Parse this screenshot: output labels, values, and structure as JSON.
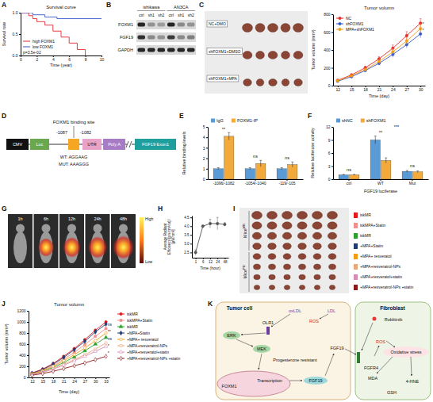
{
  "panel_letters": [
    "A",
    "B",
    "C",
    "D",
    "E",
    "F",
    "G",
    "H",
    "I",
    "J",
    "K"
  ],
  "chart_data": [
    {
      "type": "line",
      "title": "Survival curve",
      "x_label": "Time (year)",
      "y_label": "Survival rate",
      "xlim": [
        0,
        10
      ],
      "xticks": [
        0,
        2,
        4,
        6,
        8,
        10
      ],
      "ylim": [
        0,
        1
      ],
      "yticks": [
        {
          "value": 0,
          "label": "0.0"
        },
        0.5,
        {
          "value": 1,
          "label": "1.0"
        }
      ],
      "line_style": "step",
      "legend": "bottom-left",
      "annotations": [
        {
          "text": "p=3.5e-02"
        }
      ],
      "series": [
        {
          "name": "high FOXM1",
          "color": "#e8262a",
          "x": [
            0,
            1,
            1.5,
            2,
            3,
            4,
            5,
            6,
            7,
            8
          ],
          "values": [
            1,
            0.93,
            0.86,
            0.79,
            0.71,
            0.57,
            0.43,
            0.29,
            0.14,
            0
          ]
        },
        {
          "name": "low FOXM1",
          "color": "#3355cc",
          "x": [
            0,
            1.5,
            3,
            4.5,
            10
          ],
          "values": [
            1,
            0.95,
            0.9,
            0.86,
            0.86
          ]
        }
      ]
    },
    {
      "type": "line",
      "title": "Tumor volumn",
      "x_label": "Time (day)",
      "y_label": "Tumor volumn (mm³)",
      "xlim": [
        11,
        31
      ],
      "xticks": [
        12,
        15,
        18,
        21,
        24,
        27,
        30
      ],
      "ylim": [
        0,
        800
      ],
      "yticks": [
        0,
        200,
        400,
        600,
        800
      ],
      "legend": "top-left",
      "marker": "circle",
      "x": [
        12,
        15,
        18,
        21,
        24,
        27,
        30
      ],
      "series": [
        {
          "name": "NC",
          "color": "#e8262a",
          "values": [
            60,
            120,
            200,
            300,
            420,
            560,
            700
          ],
          "errors": [
            8,
            12,
            18,
            25,
            35,
            45,
            50
          ]
        },
        {
          "name": "shFOXM1",
          "color": "#3355cc",
          "values": [
            50,
            100,
            170,
            250,
            350,
            460,
            580
          ],
          "errors": [
            6,
            10,
            15,
            22,
            30,
            38,
            45
          ]
        },
        {
          "name": "MPA+shFOXM1",
          "color": "#f39c12",
          "values": [
            55,
            110,
            180,
            270,
            380,
            500,
            640
          ],
          "errors": [
            7,
            11,
            16,
            24,
            32,
            40,
            48
          ]
        }
      ],
      "annotations": [
        {
          "text": "*",
          "x": 30.4,
          "y": 620
        },
        {
          "text": "*",
          "x": 30.4,
          "y": 690
        }
      ]
    },
    {
      "type": "bar",
      "y_label": "Relative binding levels",
      "categories": [
        "-1096/-1082",
        "-1054/-1040",
        "-119/-105"
      ],
      "ylim": [
        0,
        5
      ],
      "yticks": [
        0,
        1,
        2,
        3,
        4,
        5
      ],
      "legend": "top",
      "series": [
        {
          "name": "IgG",
          "color": "#5b9bd5",
          "values": [
            1,
            1,
            1
          ],
          "errors": [
            0.1,
            0.1,
            0.1
          ]
        },
        {
          "name": "FOXM1-IP",
          "color": "#f4a93b",
          "values": [
            4.1,
            1.5,
            1.4
          ],
          "errors": [
            0.35,
            0.3,
            0.25
          ]
        }
      ],
      "annotations": [
        {
          "text": "**",
          "x": 0,
          "y": 4.65
        },
        {
          "text": "ns",
          "x": 1,
          "y": 2.05
        },
        {
          "text": "ns",
          "x": 2,
          "y": 1.9
        }
      ]
    },
    {
      "type": "bar",
      "x_label": "FGF19 luciferase",
      "y_label": "Relative luciferase activity",
      "categories": [
        "ctrl",
        "WT",
        "Mut"
      ],
      "ylim": [
        0,
        12
      ],
      "yticks": [
        0,
        3,
        6,
        9,
        12
      ],
      "legend": "top",
      "series": [
        {
          "name": "shNC",
          "color": "#5b9bd5",
          "values": [
            1,
            9,
            1.8
          ],
          "errors": [
            0.1,
            0.9,
            0.2
          ]
        },
        {
          "name": "shFOXM1",
          "color": "#f4a93b",
          "values": [
            1,
            4.3,
            1.7
          ],
          "errors": [
            0.1,
            0.6,
            0.2
          ]
        }
      ],
      "annotations": [
        {
          "text": "ns",
          "x": 0,
          "y": 1.8
        },
        {
          "text": "**",
          "x": 1,
          "y": 10.4
        },
        {
          "text": "***",
          "x": 1.5,
          "y": 11.7
        },
        {
          "text": "ns",
          "x": 2,
          "y": 2.7
        }
      ]
    },
    {
      "type": "line",
      "x_label": "Time (hour)",
      "y_label": "Average Radiant Efficiency [p/s/cm²/sr] / [µW/cm²]",
      "categories": [
        "1",
        "6",
        "12",
        "24",
        "48"
      ],
      "ylim": [
        2.2,
        4.6
      ],
      "yticks": [
        2.5,
        {
          "value": 3,
          "label": "3.0"
        },
        3.5,
        {
          "value": 4,
          "label": "4.0"
        },
        4.5
      ],
      "marker": "circle",
      "series": [
        {
          "color": "#555555",
          "values": [
            2.5,
            4.0,
            4.15,
            4.15,
            4.1
          ],
          "errors": [
            0.15,
            0.05,
            0.25,
            0.35,
            0.1
          ]
        }
      ]
    },
    {
      "type": "line",
      "title": "Tumor volumn",
      "x_label": "Time (day)",
      "y_label": "Tumor volumn (mm³)",
      "xlim": [
        11,
        34
      ],
      "xticks": [
        12,
        15,
        18,
        21,
        24,
        27,
        30,
        33
      ],
      "ylim": [
        0,
        1200
      ],
      "yticks": [
        0,
        200,
        400,
        600,
        800,
        1000,
        1200
      ],
      "legend": "right",
      "x": [
        12,
        15,
        18,
        21,
        24,
        27,
        30,
        33
      ],
      "series": [
        {
          "name": "iskMR",
          "color": "#e41a1c",
          "marker": "circle",
          "values": [
            80,
            150,
            250,
            380,
            520,
            680,
            850,
            1000
          ]
        },
        {
          "name": "iskMPA+Statin",
          "color": "#f28e8e",
          "marker": "square",
          "values": [
            70,
            130,
            220,
            330,
            450,
            590,
            740,
            880
          ]
        },
        {
          "name": "iskMR",
          "color": "#2ca02c",
          "marker": "triangle",
          "values": [
            60,
            110,
            180,
            270,
            370,
            480,
            600,
            720
          ]
        },
        {
          "name": "+MPA+Statin",
          "color": "#1f3b73",
          "marker": "diamond",
          "values": [
            75,
            140,
            240,
            360,
            500,
            650,
            820,
            960
          ]
        },
        {
          "name": "+MPA+ resveratol",
          "color": "#f39c12",
          "marker": "circle-open",
          "values": [
            65,
            120,
            200,
            300,
            410,
            530,
            660,
            800
          ]
        },
        {
          "name": "+MPA+resveratrol-NPs",
          "color": "#e8a87c",
          "marker": "square-open",
          "values": [
            55,
            100,
            160,
            240,
            320,
            410,
            510,
            620
          ]
        },
        {
          "name": "+MPA+resveratol+statin",
          "color": "#d98cb3",
          "marker": "triangle-open",
          "values": [
            50,
            90,
            150,
            220,
            300,
            380,
            470,
            560
          ]
        },
        {
          "name": "+MPA+resveratrol-NPs +statin",
          "color": "#8b1a1a",
          "marker": "diamond-open",
          "values": [
            40,
            70,
            110,
            160,
            210,
            260,
            320,
            380
          ]
        }
      ],
      "annotations": [
        {
          "text": "ns",
          "x": 33.5,
          "y": 960
        },
        {
          "text": "**",
          "x": 33.5,
          "y": 830
        },
        {
          "text": "ns",
          "x": 33.5,
          "y": 700
        },
        {
          "text": "*",
          "x": 33.5,
          "y": 570
        },
        {
          "text": "*",
          "x": 33.5,
          "y": 440
        }
      ]
    }
  ],
  "blot": {
    "groups": [
      {
        "name": "ishikawa",
        "lanes": [
          "ctrl",
          "sh1",
          "sh2"
        ]
      },
      {
        "name": "AN3CA",
        "lanes": [
          "ctrl",
          "sh1",
          "sh2"
        ]
      }
    ],
    "rows": [
      {
        "name": "FOXM1",
        "intensity": [
          0.9,
          0.35,
          0.3,
          0.9,
          0.4,
          0.35
        ]
      },
      {
        "name": "FGF19",
        "intensity": [
          0.85,
          0.4,
          0.35,
          0.8,
          0.4,
          0.45
        ]
      },
      {
        "name": "GAPDH",
        "intensity": [
          0.9,
          0.9,
          0.9,
          0.9,
          0.9,
          0.9
        ]
      }
    ]
  },
  "tumor_photos_c": {
    "rows": [
      "NC+DMO",
      "shFOXM1+DMSO",
      "shFOXM1+MPA"
    ]
  },
  "construct": {
    "binding_site": "FOXM1 binding site",
    "positions": [
      "-1087",
      "-1082"
    ],
    "elements": [
      "CMV",
      "Luc",
      "UTR",
      "Poly A"
    ],
    "exon": "FGF19 Exon1",
    "wt": "WT: AGGAAG",
    "mut": "MUT: AAAGGG"
  },
  "imaging": {
    "times": [
      "1h",
      "6h",
      "12h",
      "24h",
      "48h"
    ],
    "scale_high": "High",
    "scale_low": "Low"
  },
  "tumor_photos_i": {
    "groups": [
      {
        "base": "Mice",
        "sup": "MR"
      },
      {
        "base": "Mice",
        "sup": "PD"
      }
    ]
  },
  "pathway": {
    "cells": [
      "Tumor cell",
      "Fibroblast"
    ],
    "labels": [
      "oxLDL",
      "LDL",
      "ROS",
      "OLR1",
      "ERK",
      "MEK",
      "Progesterone resistant",
      "FOXM1",
      "Transcription",
      "FGF19",
      "FGF19",
      "FGFR4",
      "Roblitinib",
      "ROS",
      "Oxidative stress",
      "MDA",
      "GSH",
      "4-HNE"
    ]
  }
}
